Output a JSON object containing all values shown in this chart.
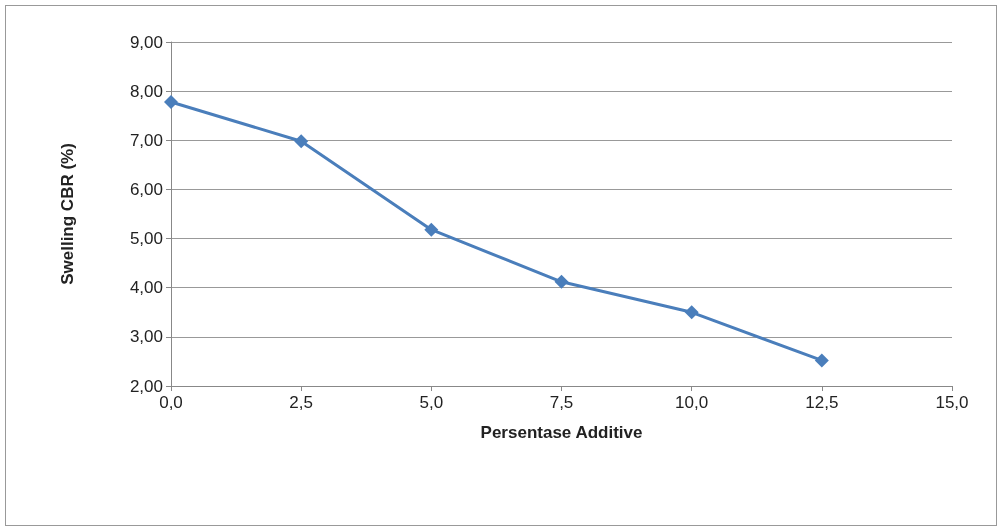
{
  "chart_data": {
    "type": "line",
    "xlabel": "Persentase Additive",
    "ylabel": "Swelling CBR (%)",
    "x": [
      0,
      2.5,
      5,
      7.5,
      10,
      12.5
    ],
    "series": [
      {
        "color": "#4a7ebb",
        "values": [
          7.78,
          6.98,
          5.18,
          4.12,
          3.5,
          2.52
        ]
      }
    ],
    "xlim": [
      0,
      15
    ],
    "xticks": [
      {
        "value": 0,
        "label": "0,0"
      },
      {
        "value": 2.5,
        "label": "2,5"
      },
      {
        "value": 5,
        "label": "5,0"
      },
      {
        "value": 7.5,
        "label": "7,5"
      },
      {
        "value": 10,
        "label": "10,0"
      },
      {
        "value": 12.5,
        "label": "12,5"
      },
      {
        "value": 15,
        "label": "15,0"
      }
    ],
    "ylim": [
      2,
      9
    ],
    "yticks": [
      {
        "value": 2,
        "label": "2,00"
      },
      {
        "value": 3,
        "label": "3,00"
      },
      {
        "value": 4,
        "label": "4,00"
      },
      {
        "value": 5,
        "label": "5,00"
      },
      {
        "value": 6,
        "label": "6,00"
      },
      {
        "value": 7,
        "label": "7,00"
      },
      {
        "value": 8,
        "label": "8,00"
      },
      {
        "value": 9,
        "label": "9,00"
      }
    ],
    "grid": "y",
    "marker": "diamond"
  }
}
